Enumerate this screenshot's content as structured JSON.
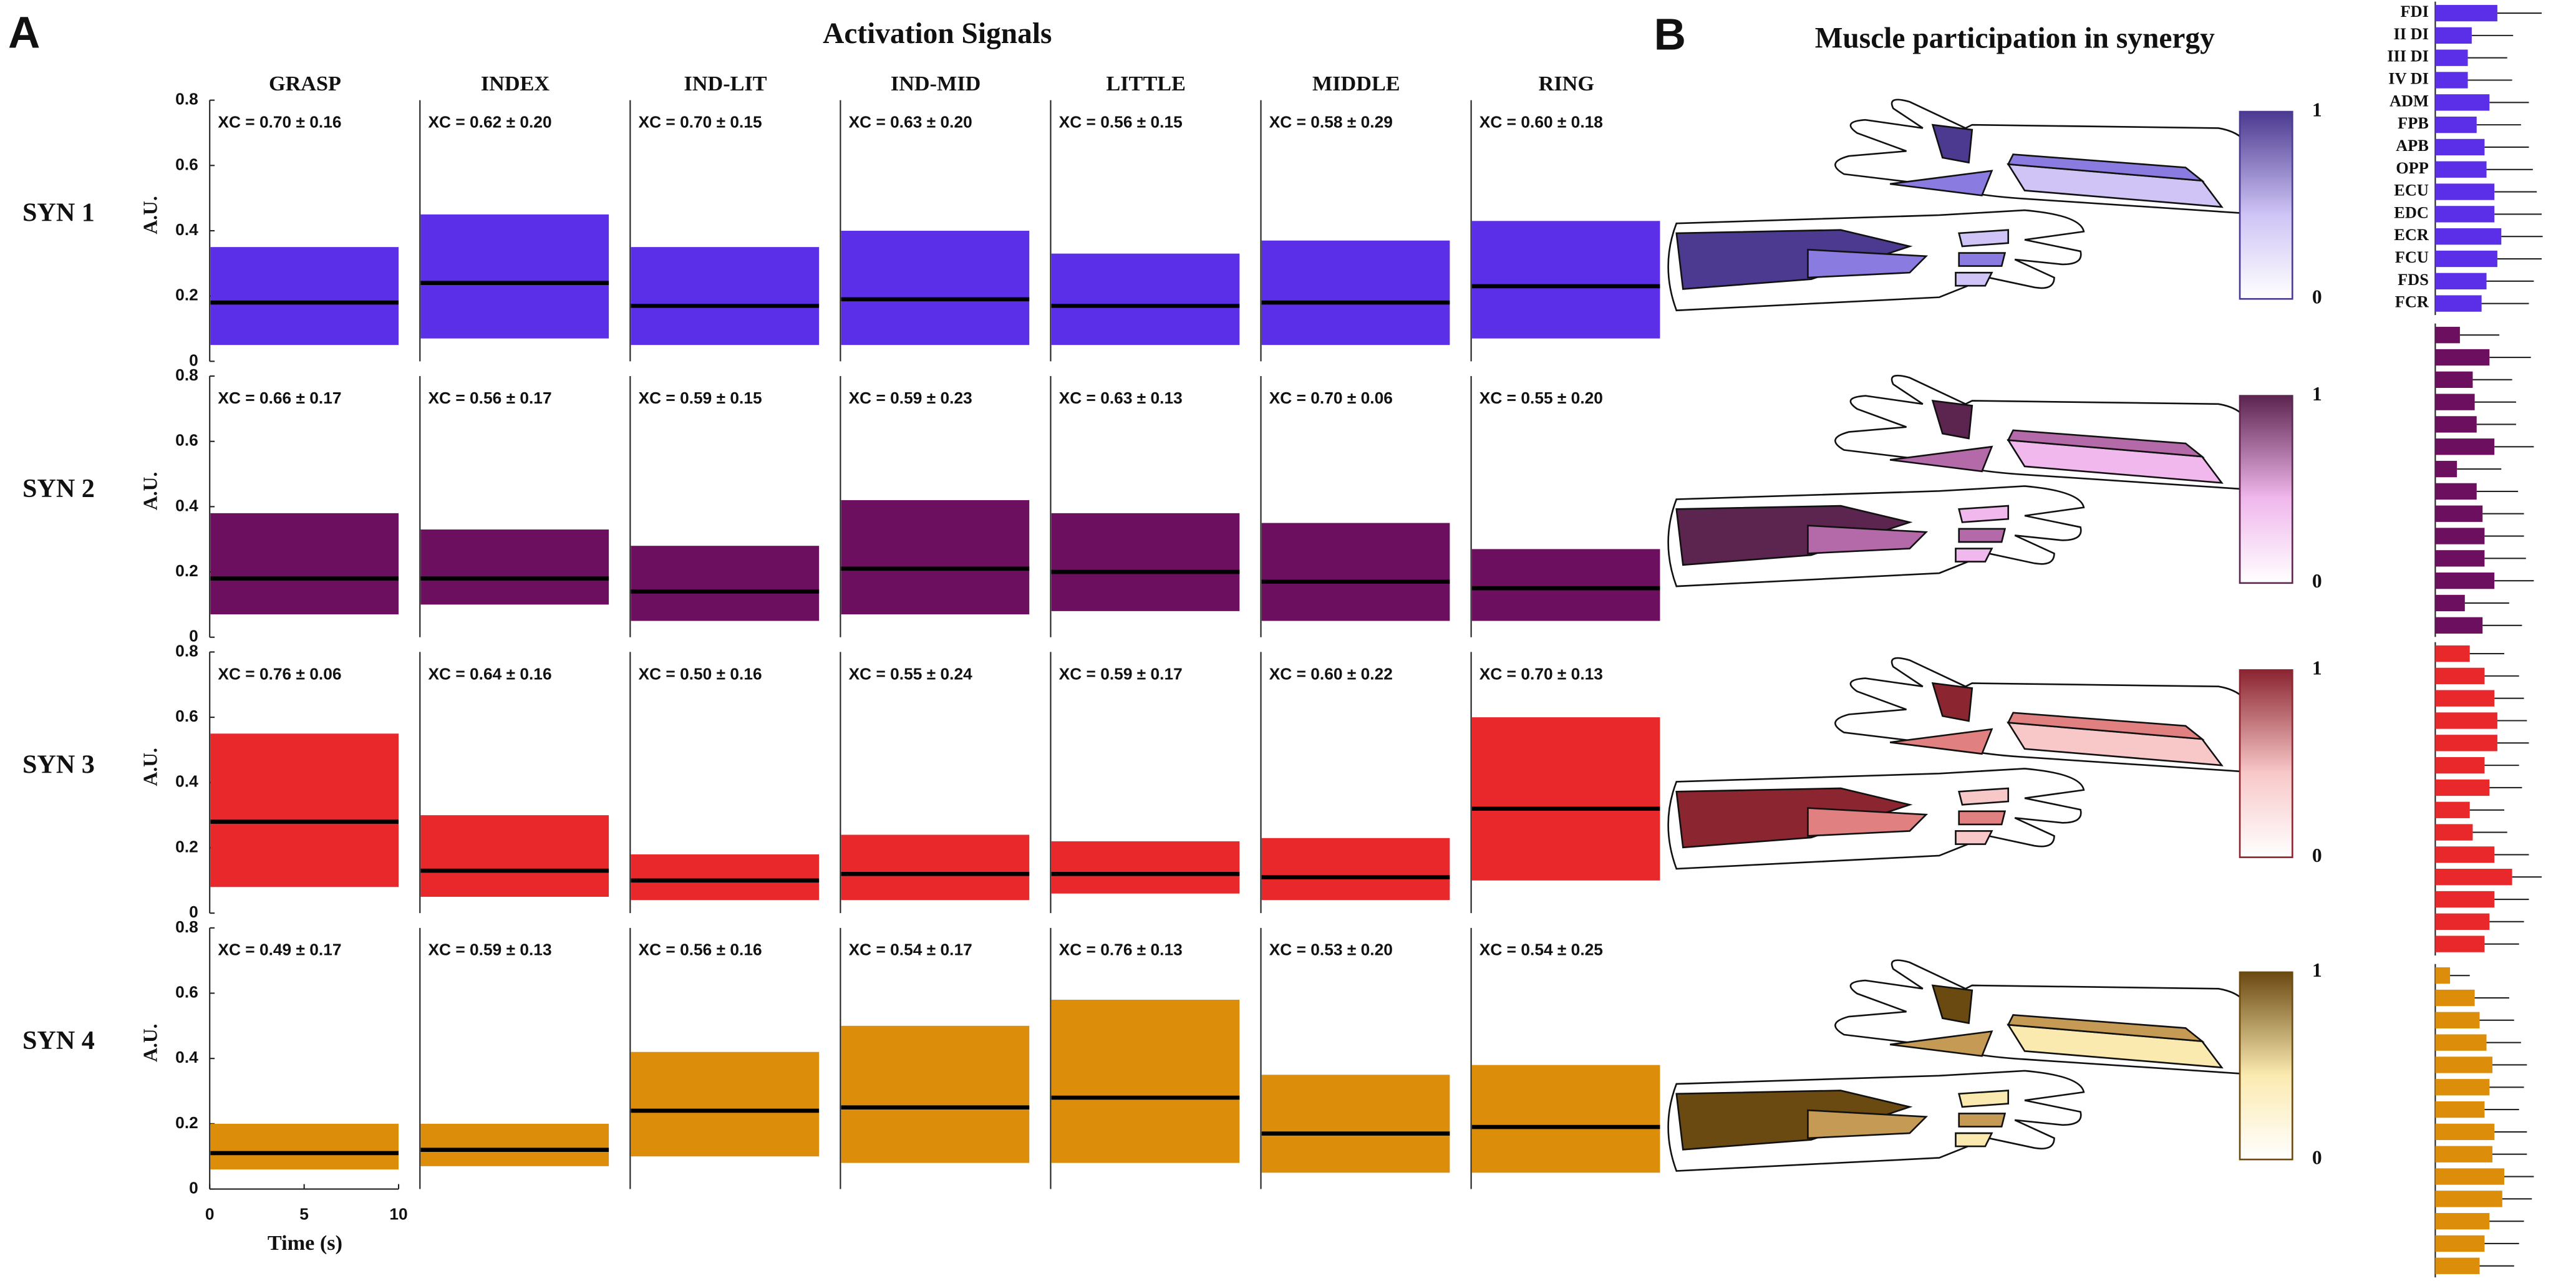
{
  "panel_a": {
    "letter": "A",
    "title": "Activation Signals",
    "y_label": "A.U.",
    "x_label": "Time (s)",
    "ylim": [
      0,
      0.8
    ],
    "yticks": [
      0,
      0.2,
      0.4,
      0.6,
      0.8
    ],
    "xlim": [
      0,
      10
    ],
    "xticks": [
      0,
      5,
      10
    ],
    "tasks": [
      "GRASP",
      "INDEX",
      "IND-LIT",
      "IND-MID",
      "LITTLE",
      "MIDDLE",
      "RING"
    ],
    "synergies": [
      {
        "name": "SYN 1",
        "color": "#5b2ee8",
        "panels": [
          {
            "xc": "XC = 0.70 ± 0.16",
            "mean": 0.18,
            "lower": 0.05,
            "upper": 0.35
          },
          {
            "xc": "XC = 0.62 ± 0.20",
            "mean": 0.24,
            "lower": 0.07,
            "upper": 0.45
          },
          {
            "xc": "XC = 0.70 ± 0.15",
            "mean": 0.17,
            "lower": 0.05,
            "upper": 0.35
          },
          {
            "xc": "XC = 0.63 ± 0.20",
            "mean": 0.19,
            "lower": 0.05,
            "upper": 0.4
          },
          {
            "xc": "XC = 0.56 ± 0.15",
            "mean": 0.17,
            "lower": 0.05,
            "upper": 0.33
          },
          {
            "xc": "XC = 0.58 ± 0.29",
            "mean": 0.18,
            "lower": 0.05,
            "upper": 0.37
          },
          {
            "xc": "XC = 0.60 ± 0.18",
            "mean": 0.23,
            "lower": 0.07,
            "upper": 0.43
          }
        ]
      },
      {
        "name": "SYN 2",
        "color": "#6b0f5e",
        "panels": [
          {
            "xc": "XC = 0.66 ± 0.17",
            "mean": 0.18,
            "lower": 0.07,
            "upper": 0.38
          },
          {
            "xc": "XC = 0.56 ± 0.17",
            "mean": 0.18,
            "lower": 0.1,
            "upper": 0.33
          },
          {
            "xc": "XC = 0.59 ± 0.15",
            "mean": 0.14,
            "lower": 0.05,
            "upper": 0.28
          },
          {
            "xc": "XC = 0.59 ± 0.23",
            "mean": 0.21,
            "lower": 0.07,
            "upper": 0.42
          },
          {
            "xc": "XC = 0.63 ± 0.13",
            "mean": 0.2,
            "lower": 0.08,
            "upper": 0.38
          },
          {
            "xc": "XC = 0.70 ± 0.06",
            "mean": 0.17,
            "lower": 0.05,
            "upper": 0.35
          },
          {
            "xc": "XC = 0.55 ± 0.20",
            "mean": 0.15,
            "lower": 0.05,
            "upper": 0.27
          }
        ]
      },
      {
        "name": "SYN 3",
        "color": "#e8282b",
        "panels": [
          {
            "xc": "XC = 0.76 ± 0.06",
            "mean": 0.28,
            "lower": 0.08,
            "upper": 0.55
          },
          {
            "xc": "XC = 0.64 ± 0.16",
            "mean": 0.13,
            "lower": 0.05,
            "upper": 0.3
          },
          {
            "xc": "XC = 0.50 ± 0.16",
            "mean": 0.1,
            "lower": 0.04,
            "upper": 0.18
          },
          {
            "xc": "XC = 0.55 ± 0.24",
            "mean": 0.12,
            "lower": 0.04,
            "upper": 0.24
          },
          {
            "xc": "XC = 0.59 ± 0.17",
            "mean": 0.12,
            "lower": 0.06,
            "upper": 0.22
          },
          {
            "xc": "XC = 0.60 ± 0.22",
            "mean": 0.11,
            "lower": 0.04,
            "upper": 0.23
          },
          {
            "xc": "XC = 0.70 ± 0.13",
            "mean": 0.32,
            "lower": 0.1,
            "upper": 0.6
          }
        ]
      },
      {
        "name": "SYN 4",
        "color": "#dc8e0a",
        "panels": [
          {
            "xc": "XC = 0.49 ± 0.17",
            "mean": 0.11,
            "lower": 0.06,
            "upper": 0.2
          },
          {
            "xc": "XC = 0.59 ± 0.13",
            "mean": 0.12,
            "lower": 0.07,
            "upper": 0.2
          },
          {
            "xc": "XC = 0.56 ± 0.16",
            "mean": 0.24,
            "lower": 0.1,
            "upper": 0.42
          },
          {
            "xc": "XC = 0.54 ± 0.17",
            "mean": 0.25,
            "lower": 0.08,
            "upper": 0.5
          },
          {
            "xc": "XC = 0.76 ± 0.13",
            "mean": 0.28,
            "lower": 0.08,
            "upper": 0.58
          },
          {
            "xc": "XC = 0.53 ± 0.20",
            "mean": 0.17,
            "lower": 0.05,
            "upper": 0.35
          },
          {
            "xc": "XC = 0.54 ± 0.25",
            "mean": 0.19,
            "lower": 0.05,
            "upper": 0.38
          }
        ]
      }
    ]
  },
  "panel_b": {
    "letter": "B",
    "title": "Muscle participation in synergy",
    "colorbar_max": 1,
    "colorbar_min": 0,
    "muscles": [
      "FDI",
      "II DI",
      "III DI",
      "IV DI",
      "ADM",
      "FPB",
      "APB",
      "OPP",
      "ECU",
      "EDC",
      "ECR",
      "FCU",
      "FDS",
      "FCR"
    ],
    "synergies": [
      {
        "color": "#5b2ee8",
        "dark": "#4b3a90",
        "mid": "#8a7be0",
        "light": "#cfc4f5",
        "values": [
          0.63,
          0.37,
          0.33,
          0.33,
          0.55,
          0.42,
          0.5,
          0.52,
          0.6,
          0.6,
          0.67,
          0.63,
          0.52,
          0.47
        ],
        "errors": [
          0.45,
          0.42,
          0.4,
          0.45,
          0.4,
          0.45,
          0.45,
          0.47,
          0.43,
          0.48,
          0.42,
          0.45,
          0.48,
          0.48
        ]
      },
      {
        "color": "#6b0f5e",
        "dark": "#5c2550",
        "mid": "#b46aa8",
        "light": "#f0b8ec",
        "values": [
          0.25,
          0.55,
          0.38,
          0.4,
          0.42,
          0.6,
          0.22,
          0.42,
          0.48,
          0.5,
          0.5,
          0.6,
          0.3,
          0.48
        ],
        "errors": [
          0.4,
          0.42,
          0.4,
          0.42,
          0.4,
          0.4,
          0.45,
          0.42,
          0.42,
          0.4,
          0.42,
          0.4,
          0.45,
          0.4
        ]
      },
      {
        "color": "#e8282b",
        "dark": "#8b2530",
        "mid": "#e08080",
        "light": "#f8c8c8",
        "values": [
          0.35,
          0.5,
          0.6,
          0.63,
          0.63,
          0.5,
          0.55,
          0.35,
          0.38,
          0.6,
          0.78,
          0.6,
          0.55,
          0.5
        ],
        "errors": [
          0.35,
          0.35,
          0.3,
          0.3,
          0.32,
          0.35,
          0.33,
          0.35,
          0.35,
          0.35,
          0.3,
          0.35,
          0.35,
          0.35
        ]
      },
      {
        "color": "#dc8e0a",
        "dark": "#6b4a12",
        "mid": "#c49a55",
        "light": "#fbeab0",
        "values": [
          0.15,
          0.4,
          0.45,
          0.52,
          0.58,
          0.55,
          0.5,
          0.6,
          0.58,
          0.7,
          0.68,
          0.55,
          0.5,
          0.45
        ],
        "errors": [
          0.2,
          0.35,
          0.35,
          0.35,
          0.35,
          0.35,
          0.35,
          0.33,
          0.35,
          0.3,
          0.3,
          0.35,
          0.35,
          0.35
        ]
      }
    ]
  }
}
